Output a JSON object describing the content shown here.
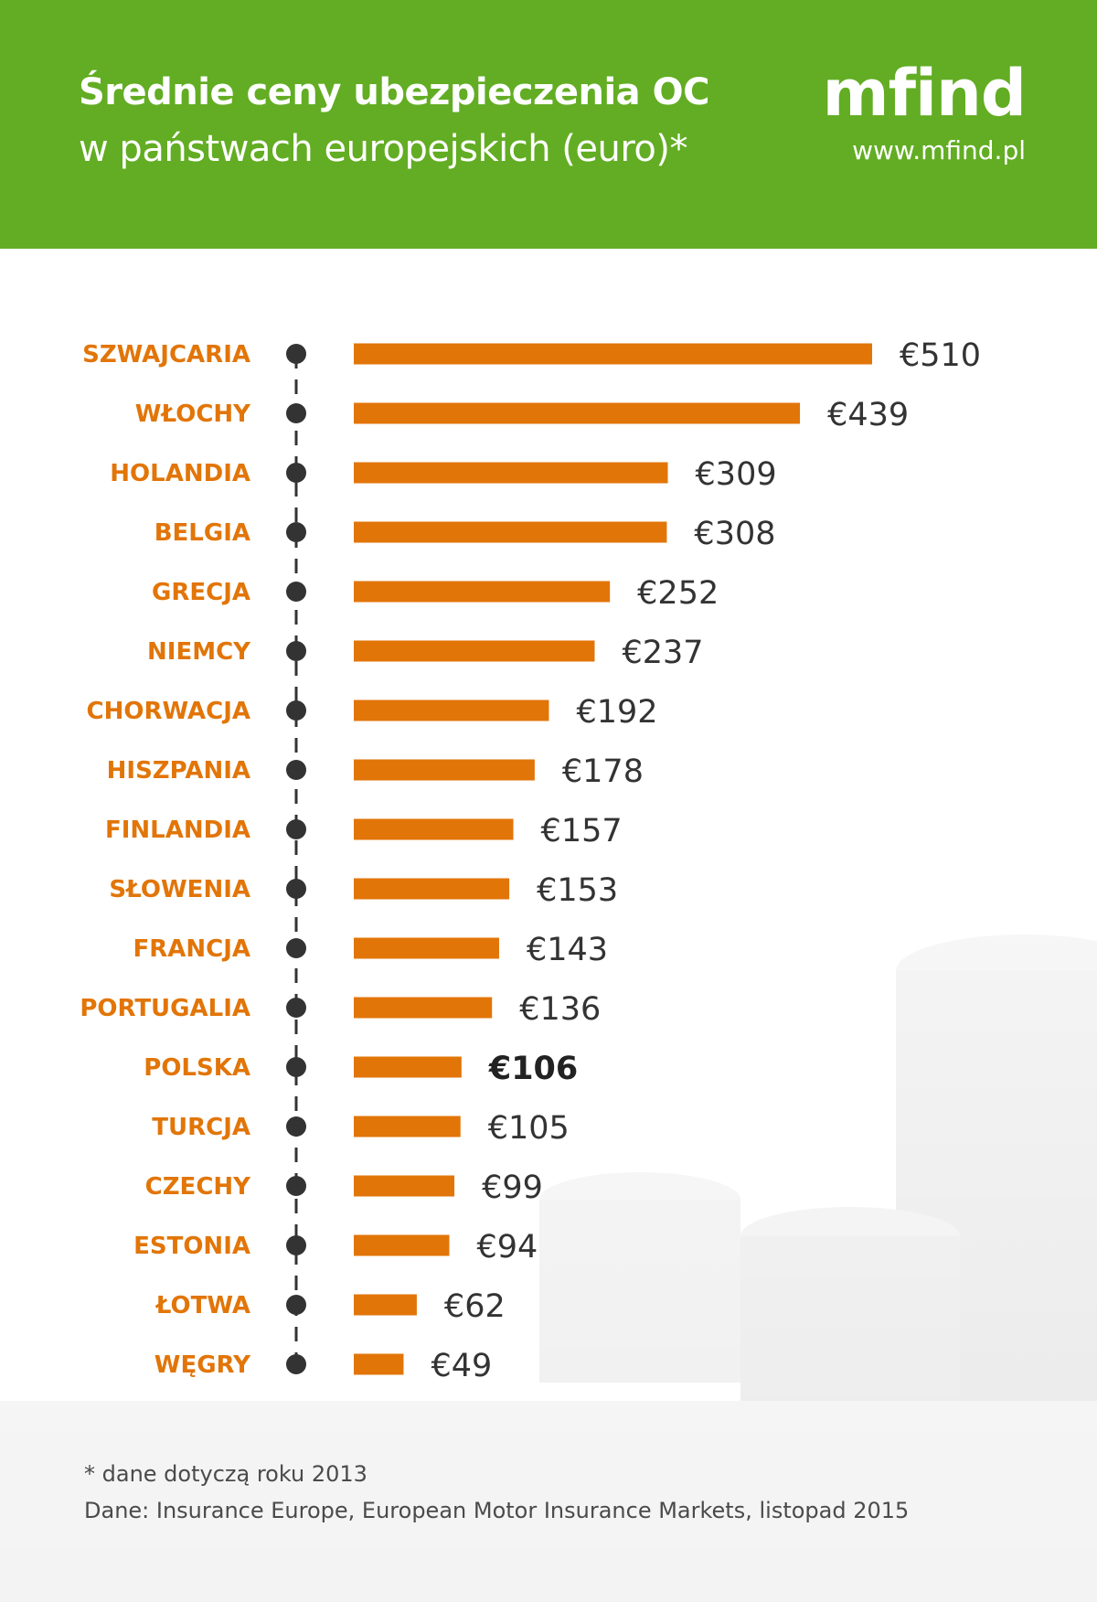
{
  "header": {
    "title_bold": "Średnie ceny ubezpieczenia OC",
    "title_regular": "w państwach europejskich (euro)*",
    "logo_text": "mfind",
    "site_url": "www.mfind.pl",
    "background_color": "#62ad23"
  },
  "colors": {
    "bar": "#e27508",
    "label": "#e27508",
    "value": "#333333",
    "dot": "#333333",
    "highlight_label": "#e27508",
    "highlight_value": "#222222"
  },
  "chart_data": {
    "type": "bar",
    "orientation": "horizontal",
    "title": "Średnie ceny ubezpieczenia OC w państwach europejskich (euro)*",
    "categories": [
      "SZWAJCARIA",
      "WŁOCHY",
      "HOLANDIA",
      "BELGIA",
      "GRECJA",
      "NIEMCY",
      "CHORWACJA",
      "HISZPANIA",
      "FINLANDIA",
      "SŁOWENIA",
      "FRANCJA",
      "PORTUGALIA",
      "POLSKA",
      "TURCJA",
      "CZECHY",
      "ESTONIA",
      "ŁOTWA",
      "WĘGRY"
    ],
    "values": [
      510,
      439,
      309,
      308,
      252,
      237,
      192,
      178,
      157,
      153,
      143,
      136,
      106,
      105,
      99,
      94,
      62,
      49
    ],
    "value_labels": [
      "€510",
      "€439",
      "€309",
      "€308",
      "€252",
      "€237",
      "€192",
      "€178",
      "€157",
      "€153",
      "€143",
      "€136",
      "€106",
      "€105",
      "€99",
      "€94",
      "€62",
      "€49"
    ],
    "highlight": "POLSKA",
    "xlim": [
      0,
      510
    ],
    "grid": false,
    "legend": "none"
  },
  "footer": {
    "note": "* dane dotyczą roku 2013",
    "source": "Dane: Insurance Europe, European Motor Insurance Markets, listopad 2015"
  }
}
